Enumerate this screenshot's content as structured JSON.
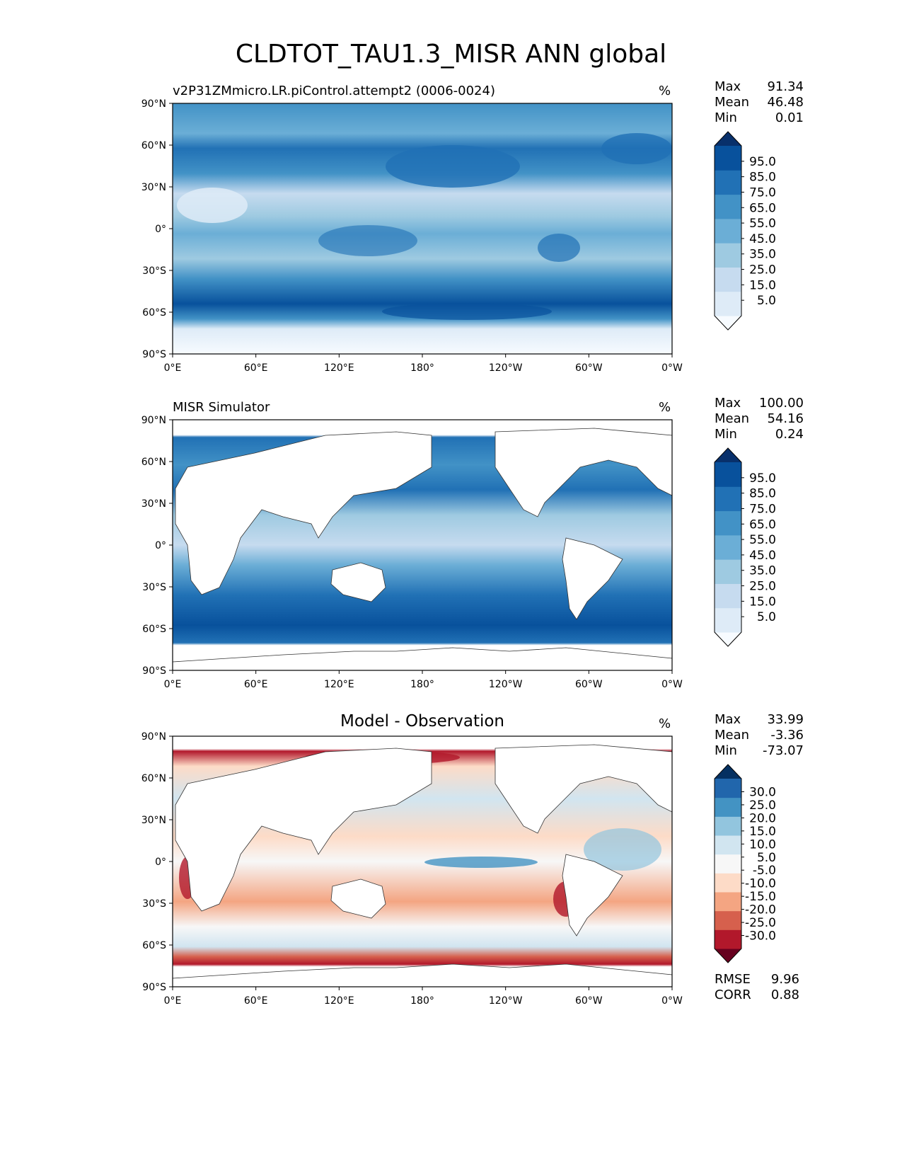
{
  "figure": {
    "title": "CLDTOT_TAU1.3_MISR ANN global"
  },
  "axes": {
    "lat_ticks": [
      "90°N",
      "60°N",
      "30°N",
      "0°",
      "30°S",
      "60°S",
      "90°S"
    ],
    "lon_ticks": [
      "0°E",
      "60°E",
      "120°E",
      "180°",
      "120°W",
      "60°W",
      "0°W"
    ]
  },
  "colors": {
    "blues": [
      "#f7fbff",
      "#deebf7",
      "#c6dbef",
      "#9ecae1",
      "#6baed6",
      "#4292c6",
      "#2171b5",
      "#08519c",
      "#08306b"
    ],
    "diverging": [
      "#67001f",
      "#b2182b",
      "#d6604d",
      "#f4a582",
      "#fddbc7",
      "#f7f7f7",
      "#d1e5f0",
      "#92c5de",
      "#4393c3",
      "#2166ac",
      "#053061"
    ]
  },
  "panels": [
    {
      "subtitle": "v2P31ZMmicro.LR.piControl.attempt2 (0006-0024)",
      "units": "%",
      "stats": [
        {
          "label": "Max",
          "value": "91.34"
        },
        {
          "label": "Mean",
          "value": "46.48"
        },
        {
          "label": "Min",
          "value": "0.01"
        }
      ],
      "colorbar_labels": [
        "95.0",
        "85.0",
        "75.0",
        "65.0",
        "55.0",
        "45.0",
        "35.0",
        "25.0",
        "15.0",
        "5.0"
      ]
    },
    {
      "subtitle": "MISR Simulator",
      "units": "%",
      "stats": [
        {
          "label": "Max",
          "value": "100.00"
        },
        {
          "label": "Mean",
          "value": "54.16"
        },
        {
          "label": "Min",
          "value": "0.24"
        }
      ],
      "colorbar_labels": [
        "95.0",
        "85.0",
        "75.0",
        "65.0",
        "55.0",
        "45.0",
        "35.0",
        "25.0",
        "15.0",
        "5.0"
      ]
    },
    {
      "subtitle": "Model - Observation",
      "units": "%",
      "stats": [
        {
          "label": "Max",
          "value": "33.99"
        },
        {
          "label": "Mean",
          "value": "-3.36"
        },
        {
          "label": "Min",
          "value": "-73.07"
        }
      ],
      "colorbar_labels": [
        "30.0",
        "25.0",
        "20.0",
        "15.0",
        "10.0",
        "5.0",
        "-5.0",
        "-10.0",
        "-15.0",
        "-20.0",
        "-25.0",
        "-30.0"
      ],
      "metrics": [
        {
          "label": "RMSE",
          "value": "9.96"
        },
        {
          "label": "CORR",
          "value": "0.88"
        }
      ]
    }
  ]
}
